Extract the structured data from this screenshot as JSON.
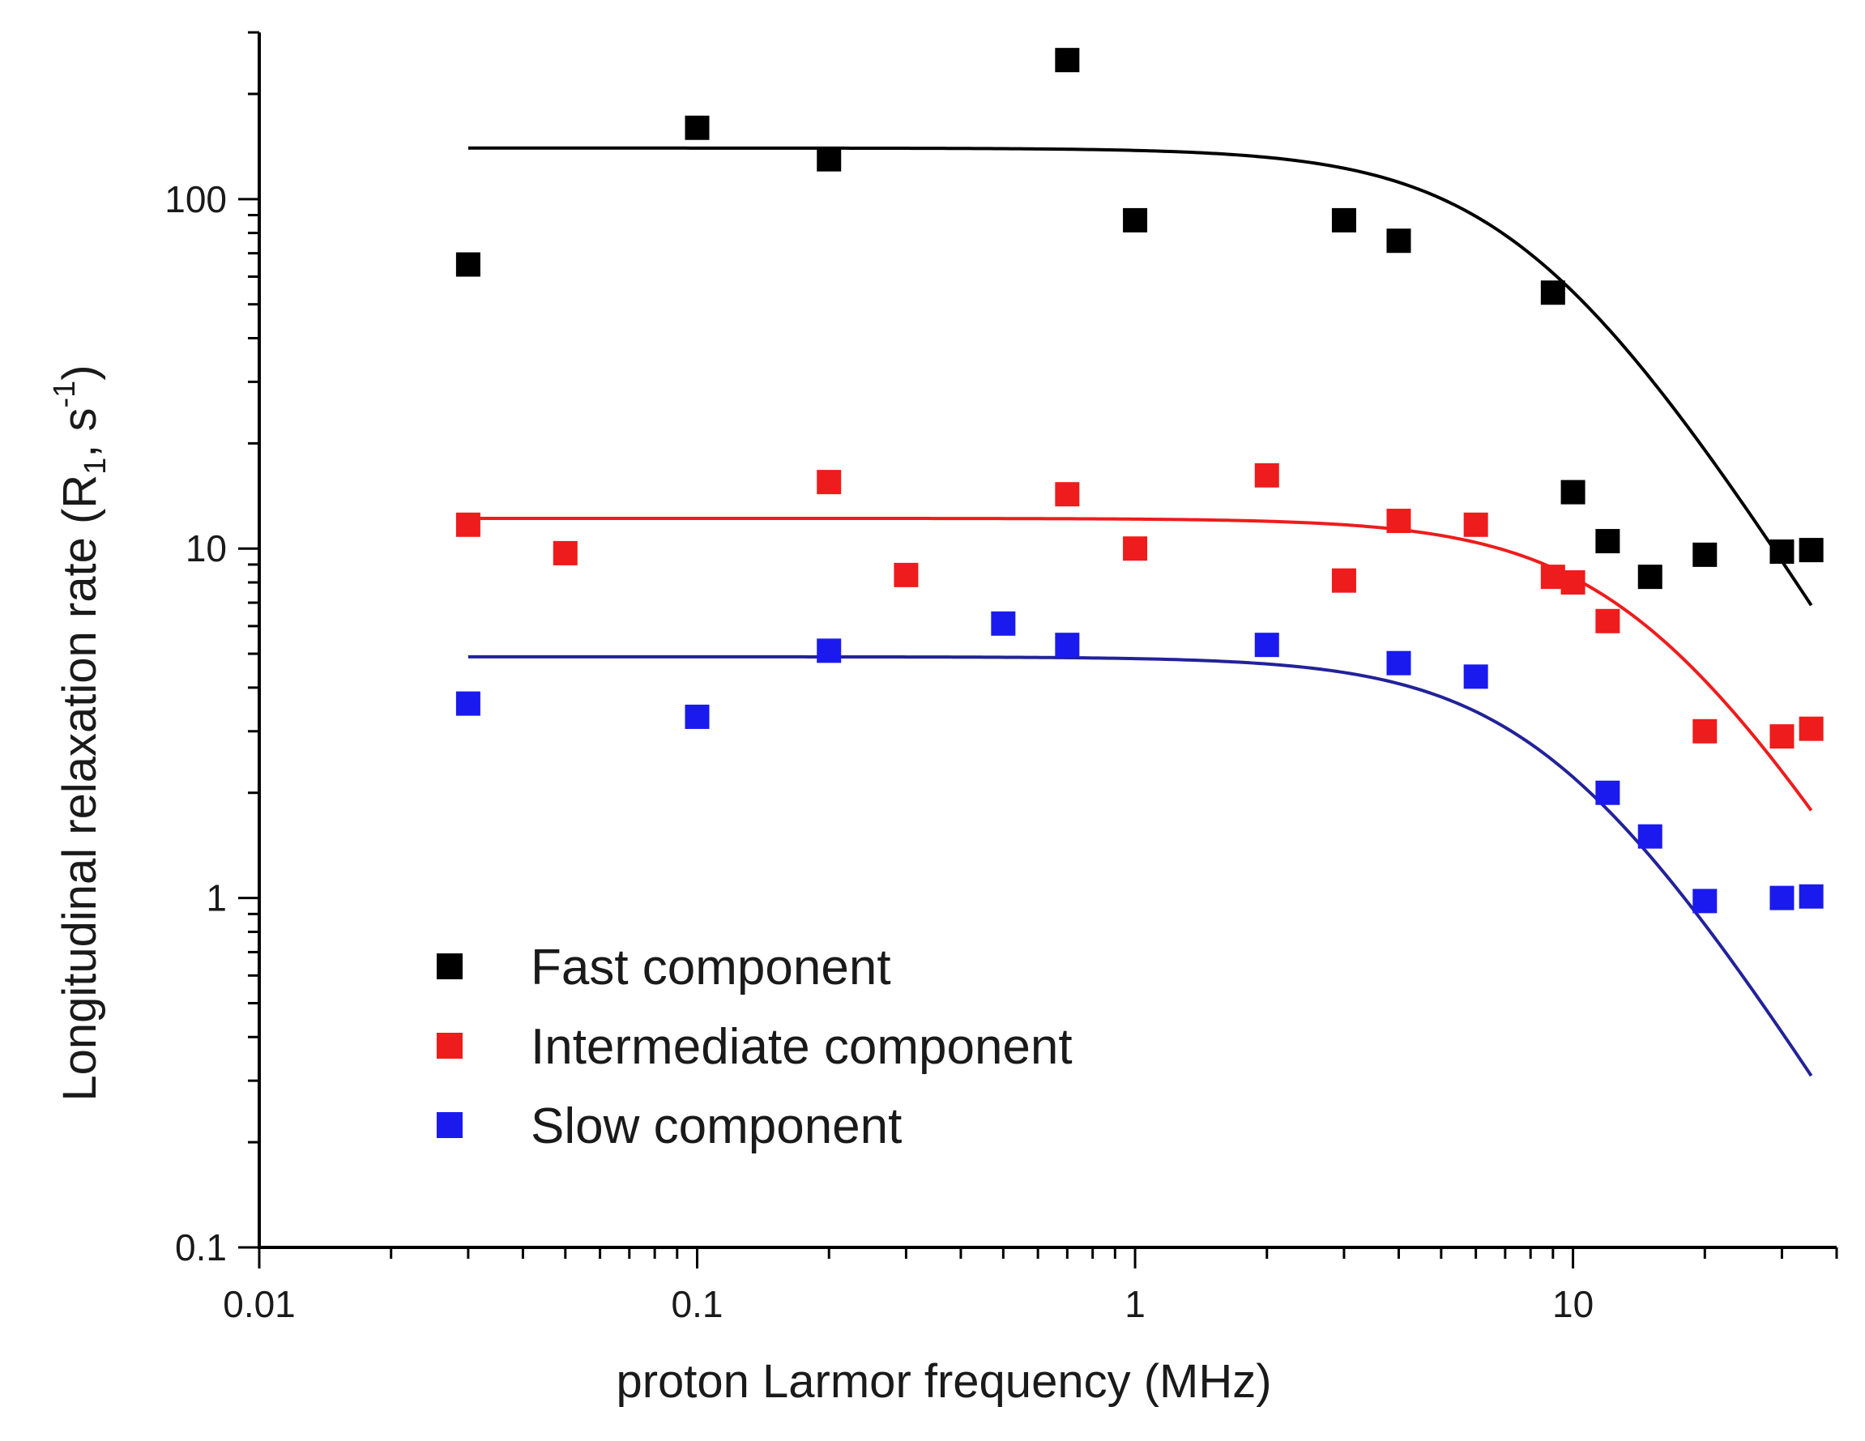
{
  "chart_data": {
    "type": "scatter",
    "title": "",
    "xlabel": "proton Larmor frequency (MHz)",
    "ylabel": {
      "prefix": "Longitudinal relaxation rate (R",
      "subscript": "1",
      "middle": ", s",
      "superscript": "-1",
      "suffix": ")"
    },
    "xscale": "log",
    "yscale": "log",
    "xlim": [
      0.01,
      40
    ],
    "ylim": [
      0.1,
      300
    ],
    "xticks": [
      {
        "value": 0.01,
        "label": "0.01"
      },
      {
        "value": 0.1,
        "label": "0.1"
      },
      {
        "value": 1,
        "label": "1"
      },
      {
        "value": 10,
        "label": "10"
      }
    ],
    "yticks": [
      {
        "value": 0.1,
        "label": "0.1"
      },
      {
        "value": 1,
        "label": "1"
      },
      {
        "value": 10,
        "label": "10"
      },
      {
        "value": 100,
        "label": "100"
      }
    ],
    "legend_position": "bottom-left",
    "series": [
      {
        "name": "Fast component",
        "color": "#000000",
        "points": [
          [
            0.03,
            65
          ],
          [
            0.1,
            160
          ],
          [
            0.2,
            130
          ],
          [
            0.7,
            250
          ],
          [
            1,
            87
          ],
          [
            3,
            87
          ],
          [
            4,
            76
          ],
          [
            9,
            54
          ],
          [
            10,
            14.5
          ],
          [
            12,
            10.5
          ],
          [
            15,
            8.3
          ],
          [
            20,
            9.6
          ],
          [
            30,
            9.8
          ],
          [
            35,
            9.9
          ]
        ],
        "fit": {
          "A": 140,
          "tau": 0.02,
          "x_range": [
            0.03,
            35
          ]
        }
      },
      {
        "name": "Intermediate component",
        "color": "#ee1c1c",
        "points": [
          [
            0.03,
            11.7
          ],
          [
            0.05,
            9.7
          ],
          [
            0.2,
            15.5
          ],
          [
            0.3,
            8.4
          ],
          [
            0.7,
            14.3
          ],
          [
            1,
            10
          ],
          [
            2,
            16.2
          ],
          [
            3,
            8.1
          ],
          [
            4,
            12
          ],
          [
            6,
            11.7
          ],
          [
            9,
            8.3
          ],
          [
            10,
            8
          ],
          [
            12,
            6.2
          ],
          [
            20,
            3
          ],
          [
            30,
            2.9
          ],
          [
            35,
            3.05
          ]
        ],
        "fit": {
          "A": 12.2,
          "tau": 0.011,
          "x_range": [
            0.03,
            35
          ]
        }
      },
      {
        "name": "Slow component",
        "color": "#1a1aee",
        "points": [
          [
            0.03,
            3.6
          ],
          [
            0.1,
            3.3
          ],
          [
            0.2,
            5.1
          ],
          [
            0.5,
            6.1
          ],
          [
            0.7,
            5.3
          ],
          [
            2,
            5.3
          ],
          [
            4,
            4.7
          ],
          [
            6,
            4.3
          ],
          [
            12,
            2
          ],
          [
            15,
            1.5
          ],
          [
            20,
            0.98
          ],
          [
            30,
            1
          ],
          [
            35,
            1.01
          ]
        ],
        "fit": {
          "A": 4.9,
          "tau": 0.0175,
          "x_range": [
            0.03,
            35
          ]
        },
        "fit_color": "#22229a"
      }
    ]
  }
}
